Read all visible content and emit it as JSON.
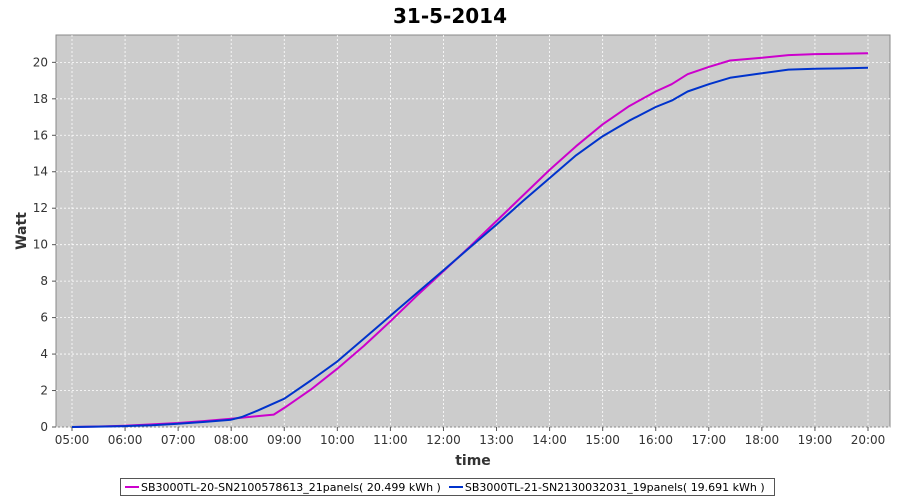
{
  "chart_data": {
    "type": "line",
    "title": "31-5-2014",
    "xlabel": "time",
    "ylabel": "Watt",
    "x_ticks": [
      "05:00",
      "06:00",
      "07:00",
      "08:00",
      "09:00",
      "10:00",
      "11:00",
      "12:00",
      "13:00",
      "14:00",
      "15:00",
      "16:00",
      "17:00",
      "18:00",
      "19:00",
      "20:00"
    ],
    "xlim": [
      5.0,
      20.0
    ],
    "ylim": [
      0,
      21.5
    ],
    "y_ticks": [
      0,
      2,
      4,
      6,
      8,
      10,
      12,
      14,
      16,
      18,
      20
    ],
    "grid": true,
    "legend_position": "bottom",
    "colors": {
      "background": "#cccccc",
      "grid": "#ffffff"
    },
    "series": [
      {
        "name": "SB3000TL-20-SN2100578613_21panels( 20.499 kWh )",
        "color": "#cc00cc",
        "points": [
          [
            5.0,
            0.0
          ],
          [
            5.5,
            0.03
          ],
          [
            6.0,
            0.07
          ],
          [
            6.5,
            0.14
          ],
          [
            7.0,
            0.22
          ],
          [
            7.5,
            0.33
          ],
          [
            8.0,
            0.45
          ],
          [
            8.5,
            0.6
          ],
          [
            8.8,
            0.68
          ],
          [
            9.0,
            1.05
          ],
          [
            9.5,
            2.05
          ],
          [
            10.0,
            3.2
          ],
          [
            10.5,
            4.45
          ],
          [
            11.0,
            5.8
          ],
          [
            11.5,
            7.2
          ],
          [
            12.0,
            8.55
          ],
          [
            12.5,
            9.9
          ],
          [
            13.0,
            11.3
          ],
          [
            13.5,
            12.7
          ],
          [
            14.0,
            14.1
          ],
          [
            14.5,
            15.4
          ],
          [
            15.0,
            16.6
          ],
          [
            15.5,
            17.6
          ],
          [
            16.0,
            18.4
          ],
          [
            16.3,
            18.8
          ],
          [
            16.6,
            19.35
          ],
          [
            17.0,
            19.75
          ],
          [
            17.4,
            20.1
          ],
          [
            18.0,
            20.25
          ],
          [
            18.5,
            20.4
          ],
          [
            19.0,
            20.45
          ],
          [
            19.5,
            20.47
          ],
          [
            20.0,
            20.5
          ]
        ]
      },
      {
        "name": "SB3000TL-21-SN2130032031_19panels( 19.691 kWh )",
        "color": "#0033cc",
        "points": [
          [
            5.0,
            0.0
          ],
          [
            5.5,
            0.02
          ],
          [
            6.0,
            0.05
          ],
          [
            6.5,
            0.1
          ],
          [
            7.0,
            0.18
          ],
          [
            7.5,
            0.28
          ],
          [
            8.0,
            0.4
          ],
          [
            8.2,
            0.55
          ],
          [
            8.5,
            0.9
          ],
          [
            9.0,
            1.55
          ],
          [
            9.5,
            2.55
          ],
          [
            10.0,
            3.6
          ],
          [
            10.5,
            4.85
          ],
          [
            11.0,
            6.1
          ],
          [
            11.5,
            7.35
          ],
          [
            12.0,
            8.6
          ],
          [
            12.5,
            9.85
          ],
          [
            13.0,
            11.1
          ],
          [
            13.5,
            12.4
          ],
          [
            14.0,
            13.65
          ],
          [
            14.5,
            14.9
          ],
          [
            15.0,
            15.95
          ],
          [
            15.5,
            16.8
          ],
          [
            16.0,
            17.55
          ],
          [
            16.3,
            17.9
          ],
          [
            16.6,
            18.4
          ],
          [
            17.0,
            18.8
          ],
          [
            17.4,
            19.15
          ],
          [
            18.0,
            19.4
          ],
          [
            18.5,
            19.6
          ],
          [
            19.0,
            19.65
          ],
          [
            19.5,
            19.67
          ],
          [
            20.0,
            19.7
          ]
        ]
      }
    ]
  }
}
